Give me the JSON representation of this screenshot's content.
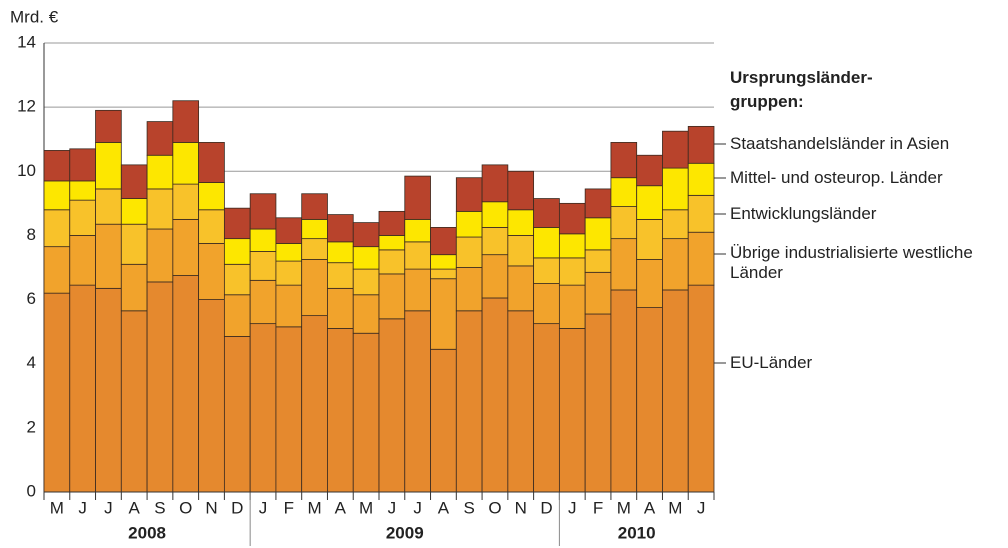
{
  "chart_data": {
    "type": "stacked_bar",
    "y_label": "Mrd. €",
    "legend_title": "Ursprungsländer-gruppen:",
    "categories": [
      "M",
      "J",
      "J",
      "A",
      "S",
      "O",
      "N",
      "D",
      "J",
      "F",
      "M",
      "A",
      "M",
      "J",
      "J",
      "A",
      "S",
      "O",
      "N",
      "D",
      "J",
      "F",
      "M",
      "A",
      "M",
      "J"
    ],
    "years": [
      "2008",
      "2008",
      "2008",
      "2008",
      "2008",
      "2008",
      "2008",
      "2008",
      "2009",
      "2009",
      "2009",
      "2009",
      "2009",
      "2009",
      "2009",
      "2009",
      "2009",
      "2009",
      "2009",
      "2009",
      "2010",
      "2010",
      "2010",
      "2010",
      "2010",
      "2010"
    ],
    "ylim": [
      0,
      14
    ],
    "yticks": [
      0,
      2,
      4,
      6,
      8,
      10,
      12,
      14
    ],
    "grid": true,
    "series": [
      {
        "name": "EU-Länder",
        "color": "#e5892e",
        "values": [
          6.2,
          6.45,
          6.35,
          5.65,
          6.55,
          6.75,
          6.0,
          4.85,
          5.25,
          5.15,
          5.5,
          5.1,
          4.95,
          5.4,
          5.65,
          4.45,
          5.65,
          6.05,
          5.65,
          5.25,
          5.1,
          5.55,
          6.3,
          5.75,
          6.3,
          6.45
        ]
      },
      {
        "name": "Übrige industrialisierte westliche Länder",
        "color": "#f1a32c",
        "values": [
          1.45,
          1.55,
          2.0,
          1.45,
          1.65,
          1.75,
          1.75,
          1.3,
          1.35,
          1.3,
          1.75,
          1.25,
          1.2,
          1.4,
          1.3,
          2.2,
          1.35,
          1.35,
          1.4,
          1.25,
          1.35,
          1.3,
          1.6,
          1.5,
          1.6,
          1.65
        ]
      },
      {
        "name": "Entwicklungsländer",
        "color": "#f8c22a",
        "values": [
          1.15,
          1.1,
          1.1,
          1.25,
          1.25,
          1.1,
          1.05,
          0.95,
          0.9,
          0.75,
          0.65,
          0.8,
          0.8,
          0.75,
          0.85,
          0.3,
          0.95,
          0.85,
          0.95,
          0.8,
          0.85,
          0.7,
          1.0,
          1.25,
          0.9,
          1.15
        ]
      },
      {
        "name": "Mittel- und osteurop. Länder",
        "color": "#fde700",
        "values": [
          0.9,
          0.6,
          1.45,
          0.8,
          1.05,
          1.3,
          0.85,
          0.8,
          0.7,
          0.55,
          0.6,
          0.65,
          0.7,
          0.45,
          0.7,
          0.45,
          0.8,
          0.8,
          0.8,
          0.95,
          0.75,
          1.0,
          0.9,
          1.05,
          1.3,
          1.0
        ]
      },
      {
        "name": "Staatshandelsländer in Asien",
        "color": "#b8432c",
        "values": [
          0.95,
          1.0,
          1.0,
          1.05,
          1.05,
          1.3,
          1.25,
          0.95,
          1.1,
          0.8,
          0.8,
          0.85,
          0.75,
          0.75,
          1.35,
          0.85,
          1.05,
          1.15,
          1.2,
          0.9,
          0.95,
          0.9,
          1.1,
          0.95,
          1.15,
          1.15
        ]
      }
    ]
  }
}
